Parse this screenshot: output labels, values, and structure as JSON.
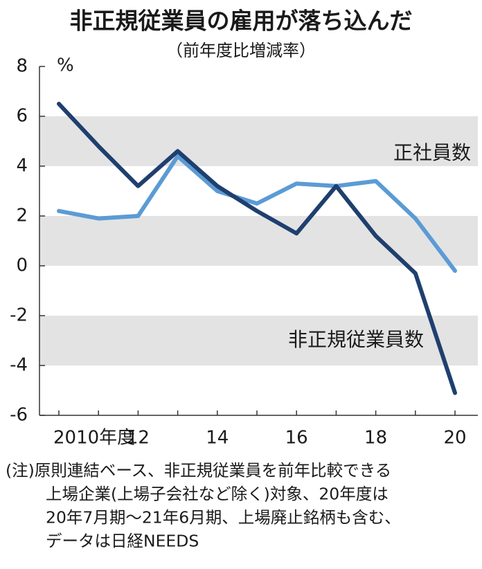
{
  "chart_data": {
    "type": "line",
    "title": "非正規従業員の雇用が落ち込んだ",
    "subtitle": "（前年度比増減率）",
    "y_unit": "%",
    "categories": [
      "2010年度",
      null,
      "12",
      null,
      "14",
      null,
      "16",
      null,
      "18",
      null,
      "20"
    ],
    "series": [
      {
        "name": "正社員数",
        "color": "#5b9bd5",
        "values": [
          2.2,
          1.9,
          2.0,
          4.4,
          3.0,
          2.5,
          3.3,
          3.2,
          3.4,
          1.9,
          -0.2
        ]
      },
      {
        "name": "非正規従業員数",
        "color": "#1f3f6e",
        "values": [
          6.5,
          4.8,
          3.2,
          4.6,
          3.2,
          2.2,
          1.3,
          3.2,
          1.2,
          -0.3,
          -5.1
        ]
      }
    ],
    "ylim": [
      -6,
      8
    ],
    "yticks": [
      8,
      6,
      4,
      2,
      0,
      -2,
      -4,
      -6
    ],
    "bands": [
      [
        4,
        6
      ],
      [
        0,
        2
      ],
      [
        -4,
        -2
      ]
    ],
    "band_color": "#e3e3e3",
    "notes": [
      "(注)原則連結ベース、非正規従業員を前年比較できる",
      "上場企業(上場子会社など除く)対象、20年度は",
      "20年7月期～21年6月期、上場廃止銘柄も含む、",
      "データは日経NEEDS"
    ]
  }
}
